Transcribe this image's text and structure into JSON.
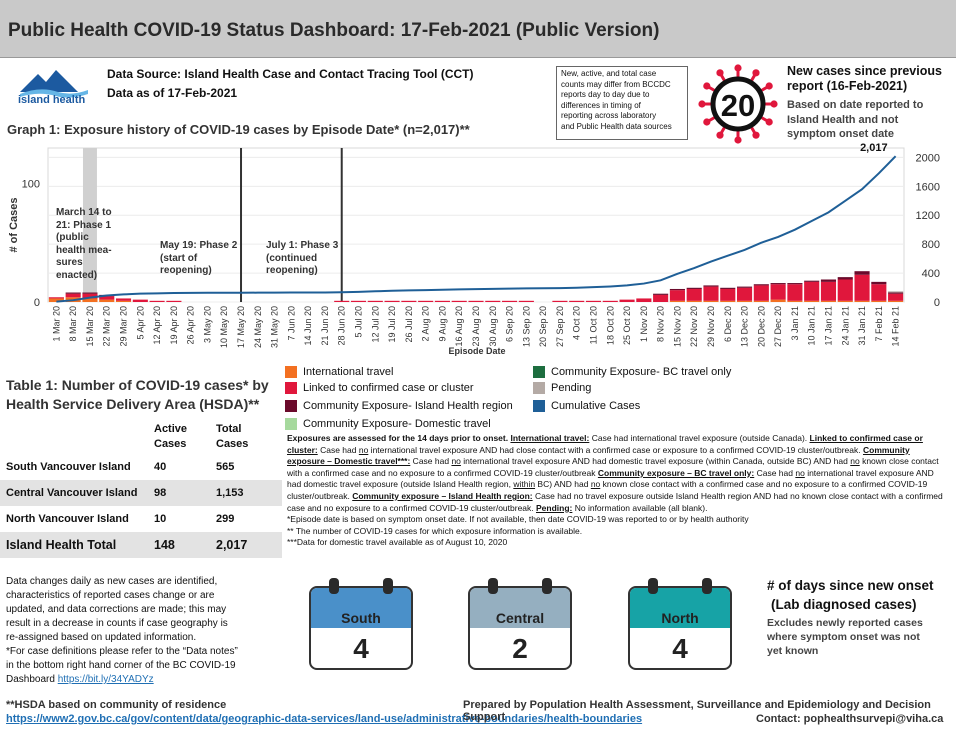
{
  "title": "Public Health COVID-19 Status Dashboard: 17-Feb-2021 (Public Version)",
  "logo": {
    "text": "island health",
    "colors": {
      "dark": "#1c5aa0",
      "light": "#66b6e6"
    }
  },
  "source": {
    "line1": "Data Source: Island Health Case and Contact Tracing Tool (CCT)",
    "line2": "Data as of 17-Feb-2021"
  },
  "note_box": [
    "New, active, and total case",
    "counts may differ from BCCDC",
    "reports day to day due to",
    "differences in timing of",
    "reporting across laboratory",
    "and Public Health data sources"
  ],
  "new_cases": {
    "value": "20",
    "head": [
      "New cases since previous",
      "report (16-Feb-2021)"
    ],
    "sub": [
      "Based on date reported to",
      "Island Health and not",
      "symptom onset date"
    ]
  },
  "graph_title": "Graph 1: Exposure history of COVID-19 cases by Episode Date* (n=2,017)**",
  "chart_data": {
    "type": "bar",
    "title": "Graph 1: Exposure history of COVID-19 cases by Episode Date* (n=2,017)**",
    "xlabel": "Episode Date",
    "ylabel": "# of Cases",
    "y_left_ticks": [
      "0",
      "100"
    ],
    "y_right_ticks": [
      "0",
      "400",
      "800",
      "1200",
      "1600",
      "2000"
    ],
    "ylim_left": [
      0,
      130
    ],
    "ylim_right": [
      0,
      2130
    ],
    "x_tick_labels": [
      "1 Mar 20",
      "8 Mar 20",
      "15 Mar 20",
      "22 Mar 20",
      "29 Mar 20",
      "5 Apr 20",
      "12 Apr 20",
      "19 Apr 20",
      "26 Apr 20",
      "3 May 20",
      "10 May 20",
      "17 May 20",
      "24 May 20",
      "31 May 20",
      "7 Jun 20",
      "14 Jun 20",
      "21 Jun 20",
      "28 Jun 20",
      "5 Jul 20",
      "12 Jul 20",
      "19 Jul 20",
      "26 Jul 20",
      "2 Aug 20",
      "9 Aug 20",
      "16 Aug 20",
      "23 Aug 20",
      "30 Aug 20",
      "6 Sep 20",
      "13 Sep 20",
      "20 Sep 20",
      "27 Sep 20",
      "4 Oct 20",
      "11 Oct 20",
      "18 Oct 20",
      "25 Oct 20",
      "1 Nov 20",
      "8 Nov 20",
      "15 Nov 20",
      "22 Nov 20",
      "29 Nov 20",
      "6 Dec 20",
      "13 Dec 20",
      "20 Dec 20",
      "27 Dec 20",
      "3 Jan 21",
      "10 Jan 21",
      "17 Jan 21",
      "24 Jan 21",
      "31 Jan 21",
      "7 Feb 21",
      "14 Feb 21"
    ],
    "weeks": [
      "1 Mar 20",
      "8 Mar 20",
      "15 Mar 20",
      "22 Mar 20",
      "29 Mar 20",
      "5 Apr 20",
      "12 Apr 20",
      "19 Apr 20",
      "26 Apr 20",
      "3 May 20",
      "10 May 20",
      "17 May 20",
      "24 May 20",
      "31 May 20",
      "7 Jun 20",
      "14 Jun 20",
      "21 Jun 20",
      "28 Jun 20",
      "5 Jul 20",
      "12 Jul 20",
      "19 Jul 20",
      "26 Jul 20",
      "2 Aug 20",
      "9 Aug 20",
      "16 Aug 20",
      "23 Aug 20",
      "30 Aug 20",
      "6 Sep 20",
      "13 Sep 20",
      "20 Sep 20",
      "27 Sep 20",
      "4 Oct 20",
      "11 Oct 20",
      "18 Oct 20",
      "25 Oct 20",
      "1 Nov 20",
      "8 Nov 20",
      "15 Nov 20",
      "22 Nov 20",
      "29 Nov 20",
      "6 Dec 20",
      "13 Dec 20",
      "20 Dec 20",
      "27 Dec 20",
      "3 Jan 21",
      "10 Jan 21",
      "17 Jan 21",
      "24 Jan 21",
      "31 Jan 21",
      "7 Feb 21",
      "14 Feb 21"
    ],
    "series": [
      {
        "name": "International travel",
        "color": "#f37021",
        "values": [
          3,
          4,
          3,
          2,
          1,
          0,
          0,
          0,
          0,
          0,
          0,
          0,
          0,
          0,
          0,
          0,
          0,
          0,
          0,
          0,
          0,
          0,
          0,
          0,
          0,
          0,
          0,
          0,
          0,
          0,
          0,
          0,
          0,
          0,
          0,
          0,
          0,
          1,
          1,
          1,
          1,
          1,
          1,
          2,
          1,
          1,
          1,
          1,
          1,
          1,
          1
        ]
      },
      {
        "name": "Linked to confirmed case or cluster",
        "color": "#e0173c",
        "values": [
          1,
          3,
          4,
          3,
          2,
          2,
          1,
          1,
          0,
          0,
          0,
          0,
          0,
          0,
          0,
          0,
          0,
          1,
          1,
          1,
          1,
          1,
          1,
          1,
          1,
          1,
          1,
          1,
          1,
          0,
          1,
          1,
          1,
          1,
          2,
          3,
          6,
          9,
          10,
          12,
          10,
          11,
          13,
          13,
          14,
          16,
          16,
          18,
          22,
          14,
          6
        ]
      },
      {
        "name": "Community Exposure- Island Health region",
        "color": "#6b0a2b",
        "values": [
          0,
          1,
          1,
          1,
          0,
          0,
          0,
          0,
          0,
          0,
          0,
          0,
          0,
          0,
          0,
          0,
          0,
          0,
          0,
          0,
          0,
          0,
          0,
          0,
          0,
          0,
          0,
          0,
          0,
          0,
          0,
          0,
          0,
          0,
          0,
          0,
          1,
          1,
          1,
          1,
          1,
          1,
          1,
          1,
          1,
          1,
          2,
          2,
          3,
          2,
          1
        ]
      },
      {
        "name": "Community Exposure- Domestic travel",
        "color": "#a6d99d",
        "values": [
          0,
          0,
          0,
          0,
          0,
          0,
          0,
          0,
          0,
          0,
          0,
          0,
          0,
          0,
          0,
          0,
          0,
          0,
          0,
          0,
          0,
          0,
          0,
          0,
          0,
          0,
          0,
          0,
          0,
          0,
          0,
          0,
          0,
          0,
          0,
          0,
          0,
          0,
          0,
          0,
          0,
          0,
          0,
          0,
          0,
          0,
          0,
          0,
          0,
          0,
          0
        ]
      },
      {
        "name": "Community Exposure- BC travel only",
        "color": "#1d6e3f",
        "values": [
          0,
          0,
          0,
          0,
          0,
          0,
          0,
          0,
          0,
          0,
          0,
          0,
          0,
          0,
          0,
          0,
          0,
          0,
          0,
          0,
          0,
          0,
          0,
          0,
          0,
          0,
          0,
          0,
          0,
          0,
          0,
          0,
          0,
          0,
          0,
          0,
          0,
          0,
          0,
          0,
          0,
          0,
          0,
          0,
          0,
          0,
          0,
          0,
          0,
          0,
          0
        ]
      },
      {
        "name": "Pending",
        "color": "#b4aaa5",
        "values": [
          0,
          0,
          0,
          0,
          0,
          0,
          0,
          0,
          0,
          0,
          0,
          0,
          0,
          0,
          0,
          0,
          0,
          0,
          0,
          0,
          0,
          0,
          0,
          0,
          0,
          0,
          0,
          0,
          0,
          0,
          0,
          0,
          0,
          0,
          0,
          0,
          0,
          0,
          0,
          0,
          0,
          0,
          0,
          0,
          0,
          0,
          0,
          0,
          0,
          0,
          1
        ]
      },
      {
        "name": "Cumulative Cases",
        "color": "#1f5f97",
        "axis": "right",
        "values": [
          5,
          25,
          60,
          90,
          105,
          115,
          120,
          125,
          127,
          128,
          128,
          128,
          129,
          130,
          131,
          131,
          132,
          134,
          140,
          148,
          155,
          160,
          165,
          170,
          174,
          178,
          182,
          185,
          188,
          190,
          192,
          197,
          205,
          215,
          230,
          255,
          300,
          390,
          470,
          560,
          640,
          720,
          820,
          900,
          1000,
          1120,
          1240,
          1400,
          1560,
          1780,
          2017
        ]
      }
    ],
    "end_label": "2,017",
    "phases": [
      {
        "week": "15 Mar 20",
        "label": [
          "March 14 to",
          "21: Phase 1",
          "(public",
          "health mea-",
          "sures",
          "enacted)"
        ]
      },
      {
        "week": "17 May 20",
        "label": [
          "May 19: Phase 2",
          "(start of",
          "reopening)"
        ]
      },
      {
        "week": "28 Jun 20",
        "label": [
          "July 1: Phase 3",
          "(continued",
          "reopening)"
        ]
      }
    ]
  },
  "legend": [
    {
      "label": "International travel",
      "color": "#f37021"
    },
    {
      "label": "Linked to confirmed case or cluster",
      "color": "#e0173c"
    },
    {
      "label": "Community Exposure- Island Health region",
      "color": "#6b0a2b"
    },
    {
      "label": "Community Exposure- Domestic travel",
      "color": "#a6d99d"
    },
    {
      "label": "Community Exposure- BC travel only",
      "color": "#1d6e3f"
    },
    {
      "label": "Pending",
      "color": "#b4aaa5"
    },
    {
      "label": "Cumulative Cases",
      "color": "#1f5f97"
    }
  ],
  "table": {
    "title": "Table 1: Number of COVID-19 cases* by Health Service Delivery Area (HSDA)**",
    "head_active": [
      "Active",
      "Cases"
    ],
    "head_total": [
      "Total",
      "Cases"
    ],
    "rows": [
      {
        "name": "South Vancouver Island",
        "active": "40",
        "total": "565"
      },
      {
        "name": "Central Vancouver Island",
        "active": "98",
        "total": "1,153"
      },
      {
        "name": "North Vancouver Island",
        "active": "10",
        "total": "299"
      }
    ],
    "total": {
      "name": "Island Health Total",
      "active": "148",
      "total": "2,017"
    }
  },
  "defs": {
    "p1": "Exposures are assessed for the 14 days prior to onset. ",
    "intl_h": "International travel:",
    "intl": " Case had international travel exposure (outside Canada). ",
    "linked_h": "Linked to confirmed case or cluster:",
    "linked": " Case had ",
    "no1": "no",
    "linked2": " international travel exposure AND had close contact with a confirmed case or exposure to a confirmed COVID-19 cluster/outbreak. ",
    "dom_h": "Community exposure – Domestic travel***:",
    "dom": " Case had ",
    "no2": "no",
    "dom2": " international travel exposure AND had domestic travel exposure (within Canada, outside BC) AND had ",
    "no3": "no",
    "dom3": " known close contact with a confirmed case and no exposure to a confirmed COVID-19 cluster/outbreak ",
    "bc_h": "Community exposure – BC travel only:",
    "bc": " Case had ",
    "no4": "no",
    "bc2": " international travel exposure AND had domestic travel exposure (outside Island Health region, ",
    "within": "within",
    "bc3": " BC) AND had ",
    "no5": "no",
    "bc4": " known close contact with a confirmed case and no exposure to a confirmed COVID-19 cluster/outbreak. ",
    "ih_h": "Community exposure – Island Health region:",
    "ih": " Case had no travel exposure outside Island Health region AND had no known close contact with a confirmed case and no exposure to a confirmed COVID-19 cluster/outbreak. ",
    "pend_h": "Pending:",
    "pend": " No information available (all blank).",
    "n1": "*Episode date is based on symptom onset date. If not available, then date COVID-19 was reported to or by health authority",
    "n2": "** The number of COVID-19 cases for which exposure information is available.",
    "n3": "***Data for domestic travel available as of August 10, 2020"
  },
  "left_notes": {
    "text": [
      "Data changes daily as new cases are identified,",
      "characteristics of reported cases change or are",
      "updated, and data corrections are made; this may",
      "result in a decrease in counts if case geography is",
      "re-assigned based on updated information.",
      "*For case definitions please refer to the “Data notes”",
      "in the bottom right hand corner of the BC COVID-19",
      "Dashboard "
    ],
    "link": "https://bit.ly/34YADYz"
  },
  "calendars": [
    {
      "label": "South",
      "value": "4",
      "color": "#4a90c9"
    },
    {
      "label": "Central",
      "value": "2",
      "color": "#95afc0"
    },
    {
      "label": "North",
      "value": "4",
      "color": "#17a3a6"
    }
  ],
  "days": {
    "head": [
      "# of days since new onset",
      "(Lab diagnosed cases)"
    ],
    "sub": [
      "Excludes newly reported cases",
      "where symptom onset was not",
      "yet known"
    ]
  },
  "footer": {
    "hsda": "**HSDA based on community of residence",
    "url": "https://www2.gov.bc.ca/gov/content/data/geographic-data-services/land-use/administrative-boundaries/health-boundaries",
    "prep": "Prepared by Population Health Assessment, Surveillance and Epidemiology and Decision Support",
    "contact": "Contact: pophealthsurvepi@viha.ca"
  }
}
